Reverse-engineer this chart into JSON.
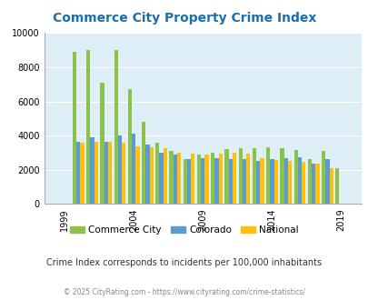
{
  "title": "Commerce City Property Crime Index",
  "title_color": "#1a6faf",
  "years": [
    1999,
    2000,
    2001,
    2002,
    2003,
    2004,
    2005,
    2006,
    2007,
    2008,
    2009,
    2010,
    2011,
    2012,
    2013,
    2014,
    2015,
    2016,
    2017,
    2018,
    2019
  ],
  "commerce_city": [
    0,
    8900,
    9000,
    7100,
    9000,
    6700,
    4800,
    3600,
    3100,
    2650,
    2900,
    3000,
    3200,
    3250,
    3250,
    3300,
    3250,
    3150,
    2650,
    3100,
    2100
  ],
  "colorado": [
    0,
    3650,
    3900,
    3650,
    4000,
    4100,
    3500,
    3000,
    2900,
    2650,
    2700,
    2700,
    2650,
    2650,
    2500,
    2600,
    2700,
    2750,
    2350,
    2600,
    0
  ],
  "national": [
    0,
    3600,
    3650,
    3650,
    3600,
    3350,
    3300,
    3250,
    3000,
    2950,
    2900,
    2950,
    3000,
    2950,
    2700,
    2550,
    2500,
    2450,
    2350,
    2100,
    0
  ],
  "commerce_city_color": "#8bc34a",
  "colorado_color": "#5b9bd5",
  "national_color": "#ffc107",
  "bg_color": "#deeef6",
  "ylim": [
    0,
    10000
  ],
  "yticks": [
    0,
    2000,
    4000,
    6000,
    8000,
    10000
  ],
  "tick_years": [
    1999,
    2004,
    2009,
    2014,
    2019
  ],
  "legend_labels": [
    "Commerce City",
    "Colorado",
    "National"
  ],
  "subtitle": "Crime Index corresponds to incidents per 100,000 inhabitants",
  "footer": "© 2025 CityRating.com - https://www.cityrating.com/crime-statistics/",
  "subtitle_color": "#333333",
  "footer_color": "#888888"
}
